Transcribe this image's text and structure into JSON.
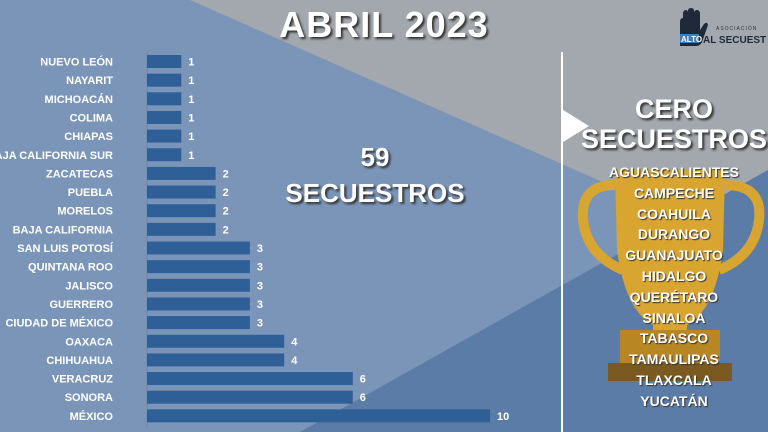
{
  "title": "ABRIL 2023",
  "logo": {
    "text_top": "ASOCIACIÓN",
    "text_alto": "ALTO",
    "text_main": "AL SECUESTRO"
  },
  "total": {
    "number": "59",
    "label": "SECUESTROS"
  },
  "zero": {
    "title_line1": "CERO",
    "title_line2": "SECUESTROS",
    "states": [
      "AGUASCALIENTES",
      "CAMPECHE",
      "COAHUILA",
      "DURANGO",
      "GUANAJUATO",
      "HIDALGO",
      "QUERÉTARO",
      "SINALOA",
      "TABASCO",
      "TAMAULIPAS",
      "TLAXCALA",
      "YUCATÁN"
    ]
  },
  "colors": {
    "bar": "#2f5f97",
    "trophy": "#d8a531"
  },
  "chart_data": {
    "type": "bar",
    "orientation": "horizontal",
    "categories": [
      "NUEVO LEÓN",
      "NAYARIT",
      "MICHOACÁN",
      "COLIMA",
      "CHIAPAS",
      "BAJA CALIFORNIA SUR",
      "ZACATECAS",
      "PUEBLA",
      "MORELOS",
      "BAJA CALIFORNIA",
      "SAN LUIS POTOSÍ",
      "QUINTANA ROO",
      "JALISCO",
      "GUERRERO",
      "CIUDAD DE MÉXICO",
      "OAXACA",
      "CHIHUAHUA",
      "VERACRUZ",
      "SONORA",
      "MÉXICO"
    ],
    "values": [
      1,
      1,
      1,
      1,
      1,
      1,
      2,
      2,
      2,
      2,
      3,
      3,
      3,
      3,
      3,
      4,
      4,
      6,
      6,
      10
    ],
    "xlim": [
      0,
      10
    ],
    "grid": false,
    "data_labels": true
  }
}
